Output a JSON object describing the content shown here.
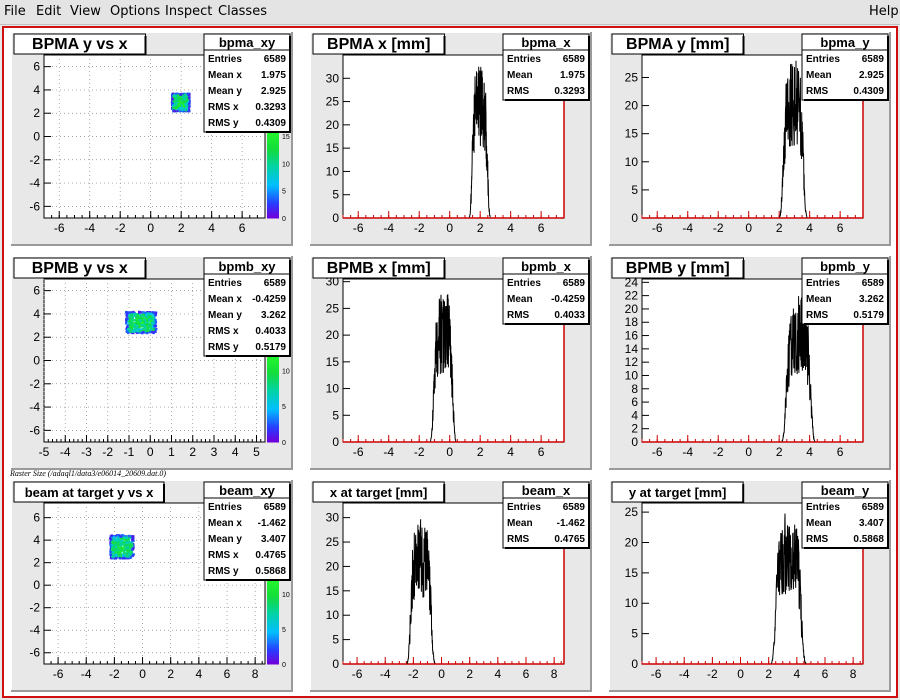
{
  "menu": {
    "items": [
      "File",
      "Edit",
      "View",
      "Options",
      "Inspect",
      "Classes"
    ],
    "help": "Help"
  },
  "caption": "Raster Size (/adaql1/data3/e06014_20609.dat.0)",
  "colors": {
    "frame": "#d01010",
    "histline": "#000000",
    "axis": "#cc0000"
  },
  "pads": [
    {
      "id": "bpma-y-vs-x",
      "type": "2d",
      "title": "BPMA y vs x",
      "stats": {
        "name": "bpma_xy",
        "rows": [
          [
            "Entries",
            "6589"
          ],
          [
            "Mean x",
            "1.975"
          ],
          [
            "Mean y",
            "2.925"
          ],
          [
            "RMS x",
            "0.3293"
          ],
          [
            "RMS y",
            "0.4309"
          ]
        ]
      },
      "xlim": [
        -7,
        7.5
      ],
      "ylim": [
        -7,
        7
      ],
      "xticks": [
        -6,
        -4,
        -2,
        0,
        2,
        4,
        6
      ],
      "yticks": [
        -6,
        -4,
        -2,
        0,
        2,
        4,
        6
      ],
      "cluster": {
        "x": 1.975,
        "y": 2.925,
        "sx": 0.3293,
        "sy": 0.4309
      },
      "palette_ticks": [
        0,
        5,
        10,
        15
      ],
      "palette_max": 17
    },
    {
      "id": "bpma-x",
      "type": "1d",
      "title": "BPMA x [mm]",
      "stats": {
        "name": "bpma_x",
        "rows": [
          [
            "Entries",
            "6589"
          ],
          [
            "Mean",
            "1.975"
          ],
          [
            "RMS",
            "0.3293"
          ]
        ]
      },
      "xlim": [
        -7,
        7.5
      ],
      "ylim": [
        0,
        35
      ],
      "xticks": [
        -6,
        -4,
        -2,
        0,
        2,
        4,
        6
      ],
      "yticks": [
        0,
        5,
        10,
        15,
        20,
        25,
        30
      ],
      "mean": 1.975,
      "rms": 0.3293,
      "peak": 33
    },
    {
      "id": "bpma-y",
      "type": "1d",
      "title": "BPMA y [mm]",
      "stats": {
        "name": "bpma_y",
        "rows": [
          [
            "Entries",
            "6589"
          ],
          [
            "Mean",
            "2.925"
          ],
          [
            "RMS",
            "0.4309"
          ]
        ]
      },
      "xlim": [
        -7,
        7.5
      ],
      "ylim": [
        0,
        29
      ],
      "xticks": [
        -6,
        -4,
        -2,
        0,
        2,
        4,
        6
      ],
      "yticks": [
        0,
        5,
        10,
        15,
        20,
        25
      ],
      "mean": 2.925,
      "rms": 0.4309,
      "peak": 28
    },
    {
      "id": "bpmb-y-vs-x",
      "type": "2d",
      "title": "BPMB y vs x",
      "stats": {
        "name": "bpmb_xy",
        "rows": [
          [
            "Entries",
            "6589"
          ],
          [
            "Mean x",
            "-0.4259"
          ],
          [
            "Mean y",
            "3.262"
          ],
          [
            "RMS x",
            "0.4033"
          ],
          [
            "RMS y",
            "0.5179"
          ]
        ]
      },
      "xlim": [
        -5,
        5.4
      ],
      "ylim": [
        -7,
        7
      ],
      "xticks": [
        -5,
        -4,
        -3,
        -2,
        -1,
        0,
        1,
        2,
        3,
        4,
        5
      ],
      "yticks": [
        -6,
        -4,
        -2,
        0,
        2,
        4,
        6
      ],
      "cluster": {
        "x": -0.4259,
        "y": 3.262,
        "sx": 0.4033,
        "sy": 0.5179
      },
      "palette_ticks": [
        0,
        5,
        10
      ],
      "palette_max": 13
    },
    {
      "id": "bpmb-x",
      "type": "1d",
      "title": "BPMB x [mm]",
      "stats": {
        "name": "bpmb_x",
        "rows": [
          [
            "Entries",
            "6589"
          ],
          [
            "Mean",
            "-0.4259"
          ],
          [
            "RMS",
            "0.4033"
          ]
        ]
      },
      "xlim": [
        -7,
        7.5
      ],
      "ylim": [
        0,
        30.5
      ],
      "xticks": [
        -6,
        -4,
        -2,
        0,
        2,
        4,
        6
      ],
      "yticks": [
        0,
        5,
        10,
        15,
        20,
        25,
        30
      ],
      "mean": -0.4259,
      "rms": 0.4033,
      "peak": 28
    },
    {
      "id": "bpmb-y",
      "type": "1d",
      "title": "BPMB y [mm]",
      "stats": {
        "name": "bpmb_y",
        "rows": [
          [
            "Entries",
            "6589"
          ],
          [
            "Mean",
            "3.262"
          ],
          [
            "RMS",
            "0.5179"
          ]
        ]
      },
      "xlim": [
        -7,
        7.5
      ],
      "ylim": [
        0,
        24.5
      ],
      "xticks": [
        -6,
        -4,
        -2,
        0,
        2,
        4,
        6
      ],
      "yticks": [
        0,
        2,
        4,
        6,
        8,
        10,
        12,
        14,
        16,
        18,
        20,
        22,
        24
      ],
      "mean": 3.262,
      "rms": 0.5179,
      "peak": 22
    },
    {
      "id": "beam-at-target-y-vs-x",
      "type": "2d",
      "title": "beam at target y vs x",
      "stats": {
        "name": "beam_xy",
        "rows": [
          [
            "Entries",
            "6589"
          ],
          [
            "Mean x",
            "-1.462"
          ],
          [
            "Mean y",
            "3.407"
          ],
          [
            "RMS x",
            "0.4765"
          ],
          [
            "RMS y",
            "0.5868"
          ]
        ]
      },
      "xlim": [
        -7,
        8.7
      ],
      "ylim": [
        -7,
        7.3
      ],
      "xticks": [
        -6,
        -4,
        -2,
        0,
        2,
        4,
        6,
        8
      ],
      "yticks": [
        -6,
        -4,
        -2,
        0,
        2,
        4,
        6
      ],
      "cluster": {
        "x": -1.462,
        "y": 3.407,
        "sx": 0.4765,
        "sy": 0.5868
      },
      "palette_ticks": [
        0,
        5,
        10
      ],
      "palette_max": 13
    },
    {
      "id": "x-at-target",
      "type": "1d",
      "title": "x at target [mm]",
      "stats": {
        "name": "beam_x",
        "rows": [
          [
            "Entries",
            "6589"
          ],
          [
            "Mean",
            "-1.462"
          ],
          [
            "RMS",
            "0.4765"
          ]
        ]
      },
      "xlim": [
        -7,
        8.7
      ],
      "ylim": [
        0,
        33
      ],
      "xticks": [
        -6,
        -4,
        -2,
        0,
        2,
        4,
        6,
        8
      ],
      "yticks": [
        0,
        5,
        10,
        15,
        20,
        25,
        30
      ],
      "mean": -1.462,
      "rms": 0.4765,
      "peak": 30
    },
    {
      "id": "y-at-target",
      "type": "1d",
      "title": "y at target [mm]",
      "stats": {
        "name": "beam_y",
        "rows": [
          [
            "Entries",
            "6589"
          ],
          [
            "Mean",
            "3.407"
          ],
          [
            "RMS",
            "0.5868"
          ]
        ]
      },
      "xlim": [
        -7,
        8.7
      ],
      "ylim": [
        0,
        26.5
      ],
      "xticks": [
        -6,
        -4,
        -2,
        0,
        2,
        4,
        6,
        8
      ],
      "yticks": [
        0,
        5,
        10,
        15,
        20,
        25
      ],
      "mean": 3.407,
      "rms": 0.5868,
      "peak": 25
    }
  ]
}
